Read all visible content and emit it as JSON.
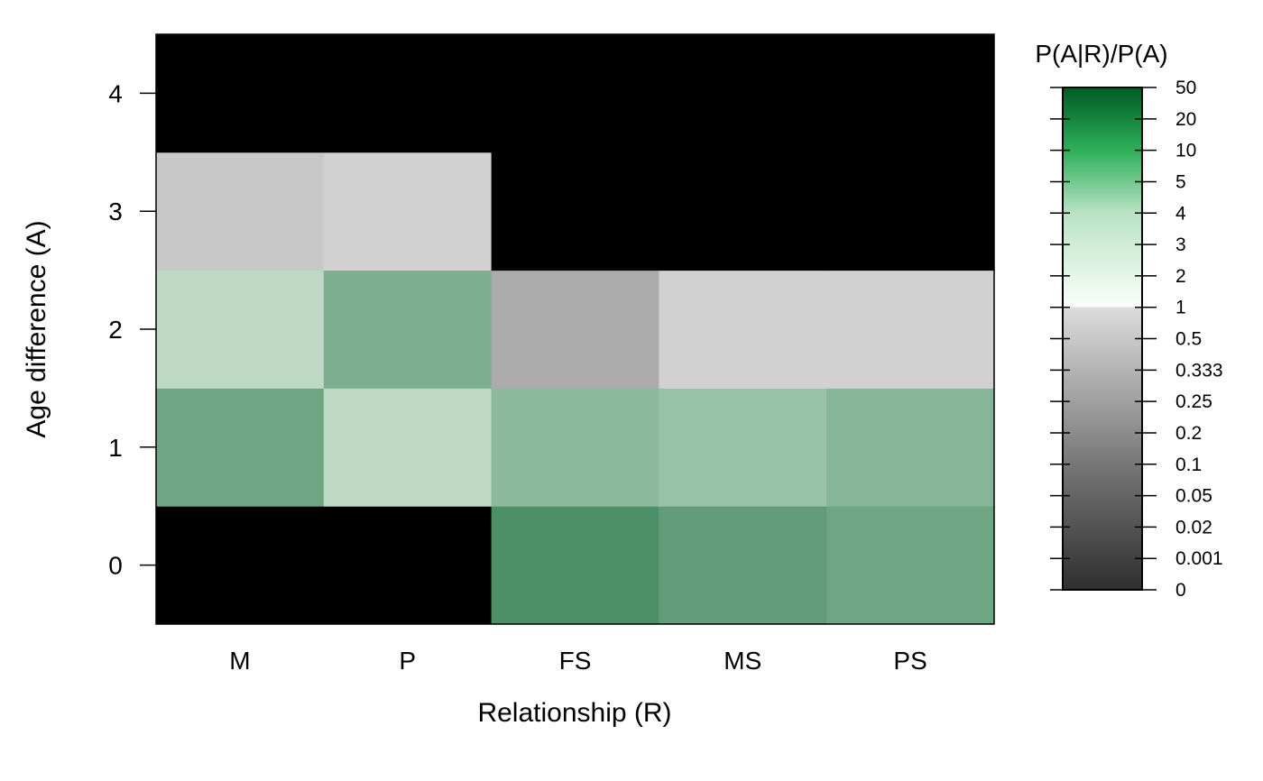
{
  "chart_data": {
    "type": "heatmap",
    "title": "",
    "xlabel": "Relationship (R)",
    "ylabel": "Age difference (A)",
    "x_categories": [
      "M",
      "P",
      "FS",
      "MS",
      "PS"
    ],
    "y_categories": [
      "0",
      "1",
      "2",
      "3",
      "4"
    ],
    "values": [
      [
        0,
        0,
        5,
        4,
        3.5
      ],
      [
        3.5,
        1.5,
        2.5,
        2.2,
        2.7
      ],
      [
        1.5,
        3,
        0.1,
        0.5,
        0.5
      ],
      [
        0.333,
        0.5,
        0,
        0,
        0
      ],
      [
        0,
        0,
        0,
        0,
        0
      ]
    ],
    "legend": {
      "title": "P(A|R)/P(A)",
      "placement": "right",
      "labels": [
        "0",
        "0.001",
        "0.02",
        "0.05",
        "0.1",
        "0.2",
        "0.25",
        "0.333",
        "0.5",
        "1",
        "2",
        "3",
        "4",
        "5",
        "10",
        "20",
        "50"
      ]
    }
  }
}
